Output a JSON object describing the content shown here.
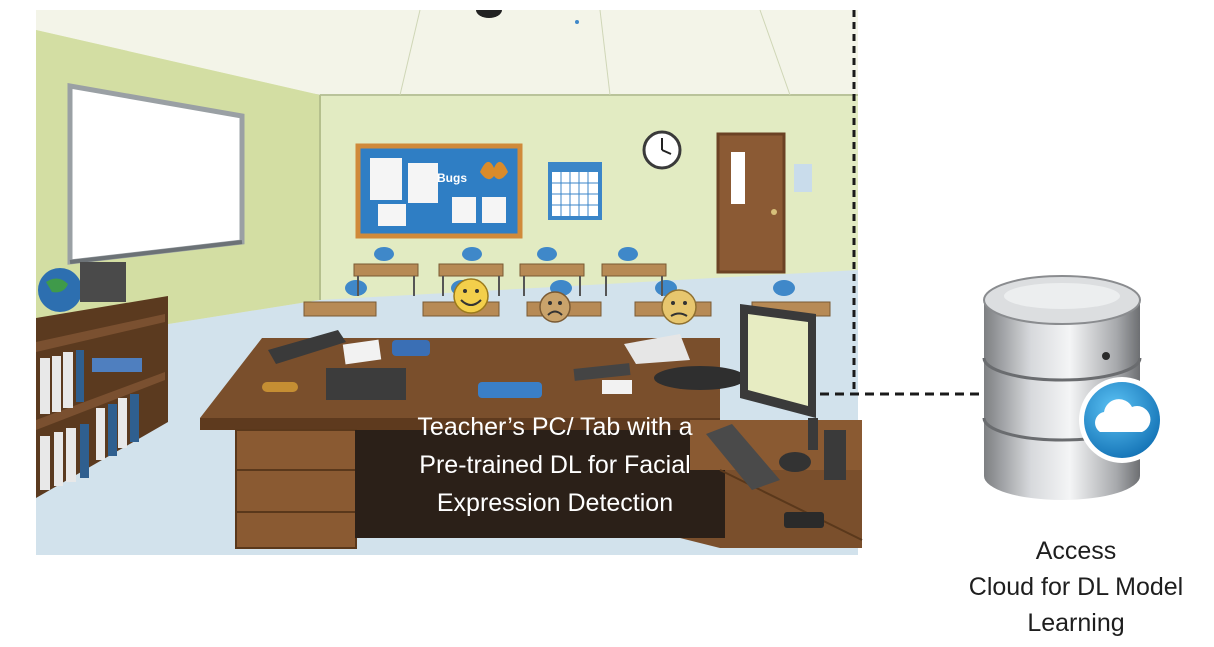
{
  "scene": {
    "board_sign": "Bugs",
    "desk_caption": [
      "Teacher’s PC/ Tab with a",
      "Pre-trained DL for Facial",
      "Expression Detection"
    ]
  },
  "cloud": {
    "label_lines": [
      "Access",
      "Cloud for DL Model",
      "Learning"
    ]
  },
  "colors": {
    "wall": "#e4ecc4",
    "side_wall": "#d6e0a6",
    "floor": "#d4e3ec",
    "desk": "#7a4f2c",
    "chairs": "#3f88c9",
    "bulletin_board": "#2f7ec4",
    "door": "#8b5a34",
    "server_badge": "#1f93d8",
    "connection_line": "#1a1a1a"
  }
}
